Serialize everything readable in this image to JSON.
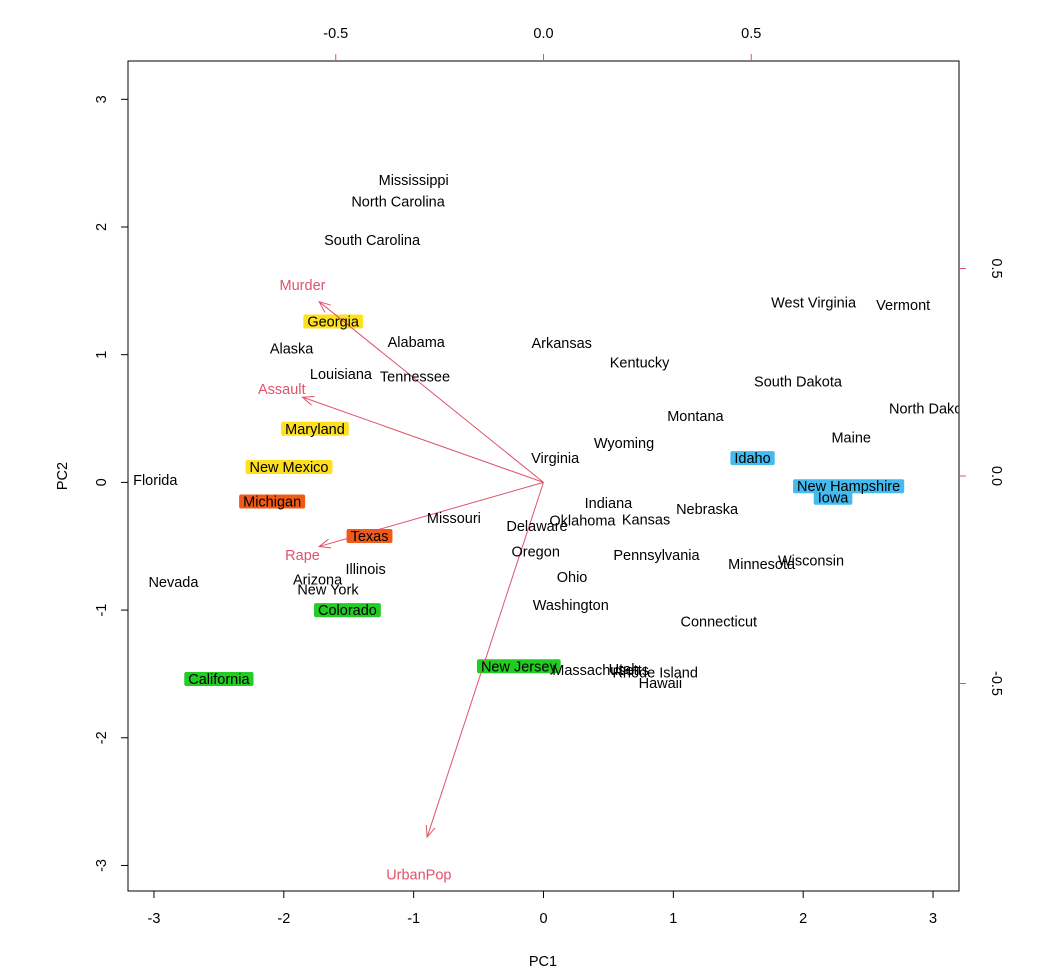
{
  "chart_data": {
    "type": "scatter",
    "subtype": "biplot",
    "title": "",
    "xlabel": "PC1",
    "ylabel": "PC2",
    "xlim": [
      -3.2,
      3.2
    ],
    "ylim": [
      -3.2,
      3.3
    ],
    "x_ticks": [
      "-3",
      "-2",
      "-1",
      "0",
      "1",
      "2",
      "3"
    ],
    "y_ticks": [
      "-3",
      "-2",
      "-1",
      "0",
      "1",
      "2",
      "3"
    ],
    "top_axis": {
      "range": [
        -1.0,
        1.0
      ],
      "ticks": [
        "-0.5",
        "0.0",
        "0.5"
      ]
    },
    "right_axis": {
      "range": [
        -1.0,
        1.0
      ],
      "ticks": [
        "-0.5",
        "0.0",
        "0.5"
      ]
    },
    "arrow_color": "#DF536B",
    "cluster_colors": {
      "yellow": "#FFE01F",
      "orange": "#F05A14",
      "green": "#22CC22",
      "blue": "#44BBEE"
    },
    "points": [
      {
        "name": "Mississippi",
        "x": -1.0,
        "y": 2.37
      },
      {
        "name": "North Carolina",
        "x": -1.12,
        "y": 2.2
      },
      {
        "name": "South Carolina",
        "x": -1.32,
        "y": 1.9
      },
      {
        "name": "Georgia",
        "x": -1.62,
        "y": 1.26,
        "highlight": "yellow"
      },
      {
        "name": "Alabama",
        "x": -0.98,
        "y": 1.1
      },
      {
        "name": "Alaska",
        "x": -1.94,
        "y": 1.05
      },
      {
        "name": "Louisiana",
        "x": -1.56,
        "y": 0.85
      },
      {
        "name": "Tennessee",
        "x": -0.99,
        "y": 0.83
      },
      {
        "name": "Maryland",
        "x": -1.76,
        "y": 0.42,
        "highlight": "yellow"
      },
      {
        "name": "New Mexico",
        "x": -1.96,
        "y": 0.12,
        "highlight": "yellow"
      },
      {
        "name": "Florida",
        "x": -2.99,
        "y": 0.02
      },
      {
        "name": "Michigan",
        "x": -2.09,
        "y": -0.15,
        "highlight": "orange"
      },
      {
        "name": "Texas",
        "x": -1.34,
        "y": -0.42,
        "highlight": "orange"
      },
      {
        "name": "Missouri",
        "x": -0.69,
        "y": -0.28
      },
      {
        "name": "Illinois",
        "x": -1.37,
        "y": -0.68
      },
      {
        "name": "Arizona",
        "x": -1.74,
        "y": -0.76
      },
      {
        "name": "New York",
        "x": -1.66,
        "y": -0.84
      },
      {
        "name": "Nevada",
        "x": -2.85,
        "y": -0.78
      },
      {
        "name": "Colorado",
        "x": -1.51,
        "y": -1.0,
        "highlight": "green"
      },
      {
        "name": "California",
        "x": -2.5,
        "y": -1.54,
        "highlight": "green"
      },
      {
        "name": "New Jersey",
        "x": -0.19,
        "y": -1.44,
        "highlight": "green"
      },
      {
        "name": "Arkansas",
        "x": 0.14,
        "y": 1.09
      },
      {
        "name": "Kentucky",
        "x": 0.74,
        "y": 0.94
      },
      {
        "name": "Virginia",
        "x": 0.09,
        "y": 0.19
      },
      {
        "name": "Wyoming",
        "x": 0.62,
        "y": 0.31
      },
      {
        "name": "Montana",
        "x": 1.17,
        "y": 0.52
      },
      {
        "name": "Indiana",
        "x": 0.5,
        "y": -0.16
      },
      {
        "name": "Nebraska",
        "x": 1.26,
        "y": -0.21
      },
      {
        "name": "Kansas",
        "x": 0.79,
        "y": -0.29
      },
      {
        "name": "Oklahoma",
        "x": 0.3,
        "y": -0.3
      },
      {
        "name": "Delaware",
        "x": -0.05,
        "y": -0.34
      },
      {
        "name": "Oregon",
        "x": -0.06,
        "y": -0.54
      },
      {
        "name": "Ohio",
        "x": 0.22,
        "y": -0.74
      },
      {
        "name": "Pennsylvania",
        "x": 0.87,
        "y": -0.57
      },
      {
        "name": "Washington",
        "x": 0.21,
        "y": -0.96
      },
      {
        "name": "Connecticut",
        "x": 1.35,
        "y": -1.09
      },
      {
        "name": "Massachusetts",
        "x": 0.44,
        "y": -1.47
      },
      {
        "name": "Utah",
        "x": 0.62,
        "y": -1.46
      },
      {
        "name": "Rhode Island",
        "x": 0.86,
        "y": -1.49
      },
      {
        "name": "Hawaii",
        "x": 0.9,
        "y": -1.57
      },
      {
        "name": "Minnesota",
        "x": 1.68,
        "y": -0.64
      },
      {
        "name": "Wisconsin",
        "x": 2.06,
        "y": -0.61
      },
      {
        "name": "West Virginia",
        "x": 2.08,
        "y": 1.41
      },
      {
        "name": "Vermont",
        "x": 2.77,
        "y": 1.39
      },
      {
        "name": "South Dakota",
        "x": 1.96,
        "y": 0.79
      },
      {
        "name": "North Dakota",
        "x": 2.99,
        "y": 0.58
      },
      {
        "name": "Maine",
        "x": 2.37,
        "y": 0.35
      },
      {
        "name": "Idaho",
        "x": 1.61,
        "y": 0.19,
        "highlight": "blue"
      },
      {
        "name": "New Hampshire",
        "x": 2.35,
        "y": -0.03,
        "highlight": "blue"
      },
      {
        "name": "Iowa",
        "x": 2.23,
        "y": -0.12,
        "highlight": "blue"
      }
    ],
    "loadings": [
      {
        "name": "Murder",
        "x": -0.54,
        "y": 0.42,
        "label_x": -0.58,
        "label_y": 0.46
      },
      {
        "name": "Assault",
        "x": -0.58,
        "y": 0.19,
        "label_x": -0.63,
        "label_y": 0.21
      },
      {
        "name": "UrbanPop",
        "x": -0.28,
        "y": -0.87,
        "label_x": -0.3,
        "label_y": -0.96
      },
      {
        "name": "Rape",
        "x": -0.54,
        "y": -0.17,
        "label_x": -0.58,
        "label_y": -0.19
      }
    ]
  }
}
